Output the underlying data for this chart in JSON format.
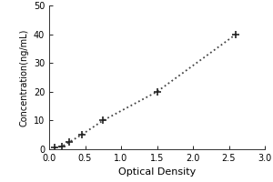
{
  "x": [
    0.08,
    0.18,
    0.28,
    0.45,
    0.75,
    1.5,
    2.6
  ],
  "y": [
    0.5,
    1.0,
    2.5,
    5.0,
    10.0,
    20.0,
    40.0
  ],
  "xlabel": "Optical Density",
  "ylabel": "Concentration(ng/mL)",
  "xlim": [
    0,
    3
  ],
  "ylim": [
    0,
    50
  ],
  "xticks": [
    0,
    0.5,
    1,
    1.5,
    2,
    2.5,
    3
  ],
  "yticks": [
    0,
    10,
    20,
    30,
    40,
    50
  ],
  "line_color": "#444444",
  "marker": "+",
  "marker_color": "#222222",
  "marker_size": 6,
  "marker_linewidth": 1.2,
  "linestyle": "dotted",
  "linewidth": 1.3,
  "background_color": "#ffffff",
  "xlabel_fontsize": 8,
  "ylabel_fontsize": 7,
  "tick_fontsize": 7
}
